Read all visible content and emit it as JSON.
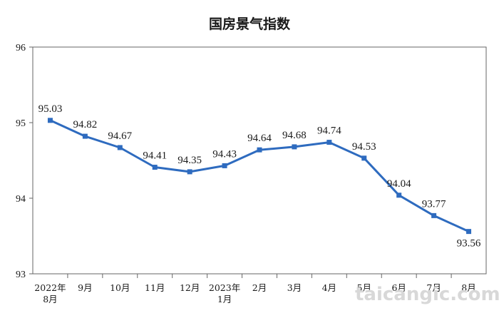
{
  "chart_data": {
    "type": "line",
    "title": "国房景气指数",
    "xlabel": "",
    "ylabel": "",
    "categories": [
      "2022年\n8月",
      "9月",
      "10月",
      "11月",
      "12月",
      "2023年\n1月",
      "2月",
      "3月",
      "4月",
      "5月",
      "6月",
      "7月",
      "8月"
    ],
    "series": [
      {
        "values": [
          95.03,
          94.82,
          94.67,
          94.41,
          94.35,
          94.43,
          94.64,
          94.68,
          94.74,
          94.53,
          94.04,
          93.77,
          93.56
        ]
      }
    ],
    "data_labels": [
      "95.03",
      "94.82",
      "94.67",
      "94.41",
      "94.35",
      "94.43",
      "94.64",
      "94.68",
      "94.74",
      "94.53",
      "94.04",
      "93.77",
      "93.56"
    ],
    "ylim": [
      93,
      96
    ],
    "yticks": [
      "93",
      "94",
      "95",
      "96"
    ],
    "grid": false,
    "legend": "none",
    "line_color": "#2e6bbf",
    "marker": "square",
    "marker_color": "#2e6bbf"
  },
  "watermark": "taicangic.com"
}
